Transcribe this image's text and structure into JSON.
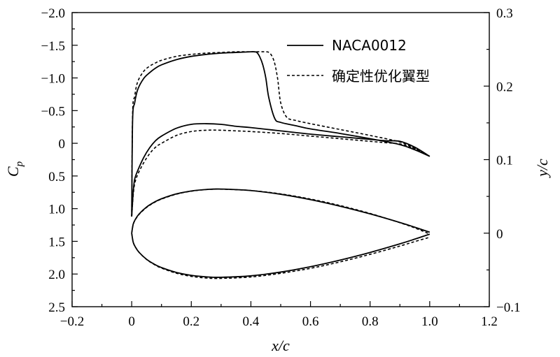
{
  "chart_data": {
    "type": "line",
    "title": "",
    "xlabel": "x/c",
    "ylabel_left_main": "C",
    "ylabel_left_sub": "p",
    "ylabel_right": "y/c",
    "xlim": [
      -0.2,
      1.2
    ],
    "ylim_left": [
      2.5,
      -2.0
    ],
    "ylim_right": [
      -0.1,
      0.3
    ],
    "grid": false,
    "legend_position": "top-right",
    "x_ticks": [
      -0.2,
      0.0,
      0.2,
      0.4,
      0.6,
      0.8,
      1.0,
      1.2
    ],
    "x_tick_labels": [
      "−0.2",
      "0",
      "0.2",
      "0.4",
      "0.6",
      "0.8",
      "1.0",
      "1.2"
    ],
    "left_ticks": [
      -2.0,
      -1.5,
      -1.0,
      -0.5,
      0,
      0.5,
      1.0,
      1.5,
      2.0,
      2.5
    ],
    "left_tick_labels": [
      "−2.0",
      "−1.5",
      "−1.0",
      "−0.5",
      "0",
      "0.5",
      "1.0",
      "1.5",
      "2.0",
      "2.5"
    ],
    "right_ticks": [
      -0.1,
      0,
      0.1,
      0.2,
      0.3
    ],
    "right_tick_labels": [
      "−0.1",
      "0",
      "0.1",
      "0.2",
      "0.3"
    ],
    "series": [
      {
        "name": "NACA0012",
        "style": "solid",
        "axis": "left",
        "kind": "cp_upper",
        "x": [
          0.0,
          0.003,
          0.01,
          0.02,
          0.04,
          0.06,
          0.08,
          0.1,
          0.15,
          0.2,
          0.25,
          0.3,
          0.35,
          0.4,
          0.41,
          0.42,
          0.43,
          0.44,
          0.45,
          0.46,
          0.48,
          0.5,
          0.55,
          0.6,
          0.7,
          0.8,
          0.9,
          0.95,
          1.0
        ],
        "values": [
          1.12,
          -0.35,
          -0.62,
          -0.82,
          -0.99,
          -1.08,
          -1.15,
          -1.2,
          -1.28,
          -1.33,
          -1.36,
          -1.38,
          -1.39,
          -1.4,
          -1.4,
          -1.39,
          -1.32,
          -1.2,
          -1.0,
          -0.7,
          -0.38,
          -0.32,
          -0.27,
          -0.22,
          -0.15,
          -0.07,
          0.02,
          0.1,
          0.2
        ]
      },
      {
        "name": "NACA0012",
        "style": "solid",
        "axis": "left",
        "kind": "cp_lower",
        "x": [
          0.0,
          0.005,
          0.01,
          0.02,
          0.04,
          0.06,
          0.08,
          0.1,
          0.15,
          0.2,
          0.25,
          0.3,
          0.35,
          0.4,
          0.5,
          0.6,
          0.7,
          0.8,
          0.85,
          0.9,
          0.95,
          1.0
        ],
        "values": [
          1.12,
          0.75,
          0.55,
          0.42,
          0.22,
          0.07,
          -0.04,
          -0.11,
          -0.23,
          -0.29,
          -0.3,
          -0.29,
          -0.26,
          -0.24,
          -0.19,
          -0.14,
          -0.1,
          -0.06,
          -0.04,
          -0.03,
          0.06,
          0.2
        ]
      },
      {
        "name": "NACA0012",
        "style": "solid",
        "axis": "right",
        "kind": "airfoil_upper",
        "x": [
          0.0,
          0.005,
          0.0125,
          0.025,
          0.05,
          0.075,
          0.1,
          0.15,
          0.2,
          0.25,
          0.3,
          0.4,
          0.5,
          0.6,
          0.7,
          0.8,
          0.9,
          0.95,
          1.0
        ],
        "values": [
          0.0,
          0.0122,
          0.0189,
          0.0262,
          0.0356,
          0.042,
          0.0468,
          0.0534,
          0.0574,
          0.0594,
          0.06,
          0.058,
          0.0529,
          0.0456,
          0.0366,
          0.0262,
          0.0145,
          0.0081,
          0.0013
        ]
      },
      {
        "name": "NACA0012",
        "style": "solid",
        "axis": "right",
        "kind": "airfoil_lower",
        "x": [
          0.0,
          0.005,
          0.0125,
          0.025,
          0.05,
          0.075,
          0.1,
          0.15,
          0.2,
          0.25,
          0.3,
          0.4,
          0.5,
          0.6,
          0.7,
          0.8,
          0.9,
          0.95,
          1.0
        ],
        "values": [
          0.0,
          -0.0122,
          -0.0189,
          -0.0262,
          -0.0356,
          -0.042,
          -0.0468,
          -0.0534,
          -0.0574,
          -0.0594,
          -0.06,
          -0.058,
          -0.0529,
          -0.0456,
          -0.0366,
          -0.0262,
          -0.0145,
          -0.0081,
          -0.0013
        ]
      },
      {
        "name": "确定性优化翼型",
        "style": "dashed",
        "axis": "left",
        "kind": "cp_upper",
        "x": [
          0.0,
          0.003,
          0.01,
          0.02,
          0.04,
          0.06,
          0.08,
          0.1,
          0.15,
          0.2,
          0.25,
          0.3,
          0.35,
          0.4,
          0.45,
          0.46,
          0.47,
          0.48,
          0.49,
          0.5,
          0.52,
          0.55,
          0.6,
          0.7,
          0.8,
          0.9,
          0.95,
          1.0
        ],
        "values": [
          1.12,
          -0.45,
          -0.72,
          -0.94,
          -1.1,
          -1.18,
          -1.23,
          -1.27,
          -1.33,
          -1.36,
          -1.38,
          -1.39,
          -1.4,
          -1.4,
          -1.4,
          -1.39,
          -1.34,
          -1.22,
          -0.98,
          -0.62,
          -0.4,
          -0.35,
          -0.3,
          -0.21,
          -0.12,
          -0.02,
          0.08,
          0.2
        ]
      },
      {
        "name": "确定性优化翼型",
        "style": "dashed",
        "axis": "left",
        "kind": "cp_lower",
        "x": [
          0.0,
          0.005,
          0.01,
          0.02,
          0.04,
          0.06,
          0.08,
          0.1,
          0.15,
          0.2,
          0.25,
          0.3,
          0.35,
          0.4,
          0.5,
          0.6,
          0.7,
          0.8,
          0.85,
          0.9,
          0.95,
          1.0
        ],
        "values": [
          1.12,
          0.8,
          0.62,
          0.48,
          0.3,
          0.16,
          0.06,
          0.0,
          -0.12,
          -0.18,
          -0.2,
          -0.2,
          -0.19,
          -0.18,
          -0.15,
          -0.11,
          -0.07,
          -0.03,
          -0.01,
          0.01,
          0.08,
          0.2
        ]
      },
      {
        "name": "确定性优化翼型",
        "style": "dashed",
        "axis": "right",
        "kind": "airfoil_upper",
        "x": [
          0.0,
          0.005,
          0.0125,
          0.025,
          0.05,
          0.075,
          0.1,
          0.15,
          0.2,
          0.25,
          0.3,
          0.4,
          0.5,
          0.6,
          0.7,
          0.8,
          0.9,
          0.95,
          1.0
        ],
        "values": [
          0.0,
          0.0118,
          0.0184,
          0.0256,
          0.035,
          0.0415,
          0.0463,
          0.053,
          0.0571,
          0.0593,
          0.0598,
          0.058,
          0.0534,
          0.0464,
          0.0375,
          0.0268,
          0.0142,
          0.0071,
          -0.0012
        ]
      },
      {
        "name": "确定性优化翼型",
        "style": "dashed",
        "axis": "right",
        "kind": "airfoil_lower",
        "x": [
          0.0,
          0.005,
          0.0125,
          0.025,
          0.05,
          0.075,
          0.1,
          0.15,
          0.2,
          0.25,
          0.3,
          0.4,
          0.5,
          0.6,
          0.7,
          0.8,
          0.9,
          0.95,
          1.0
        ],
        "values": [
          0.0,
          -0.0122,
          -0.0189,
          -0.0262,
          -0.0358,
          -0.0425,
          -0.0475,
          -0.0545,
          -0.0588,
          -0.061,
          -0.0615,
          -0.0596,
          -0.0546,
          -0.0478,
          -0.039,
          -0.0288,
          -0.0175,
          -0.0114,
          -0.0056
        ]
      }
    ],
    "legend": [
      {
        "label": "NACA0012",
        "style": "solid"
      },
      {
        "label": "确定性优化翼型",
        "style": "dashed"
      }
    ]
  }
}
